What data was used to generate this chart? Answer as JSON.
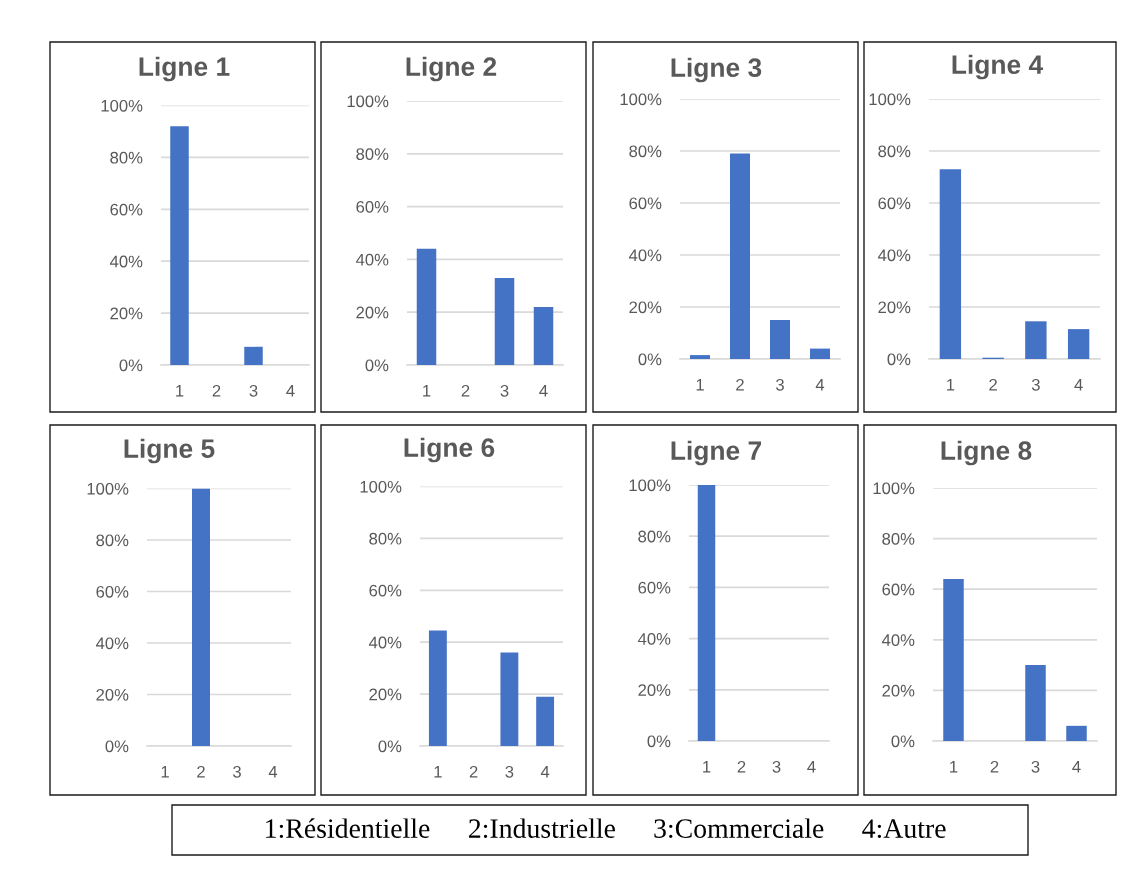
{
  "chart_data": [
    {
      "type": "bar",
      "title": "Ligne 1",
      "categories": [
        "1",
        "2",
        "3",
        "4"
      ],
      "values": [
        92,
        0,
        7,
        0
      ],
      "color": "#4472c4",
      "ylim": [
        0,
        100
      ],
      "yticks": [
        {
          "value": 0,
          "label": "0%"
        },
        {
          "value": 20,
          "label": "20%"
        },
        {
          "value": 40,
          "label": "40%"
        },
        {
          "value": 60,
          "label": "60%"
        },
        {
          "value": 80,
          "label": "80%"
        },
        {
          "value": 100,
          "label": "100%"
        }
      ],
      "grid": "y"
    },
    {
      "type": "bar",
      "title": "Ligne 2",
      "categories": [
        "1",
        "2",
        "3",
        "4"
      ],
      "values": [
        44,
        0,
        33,
        22
      ],
      "color": "#4472c4",
      "ylim": [
        0,
        100
      ],
      "yticks": [
        {
          "value": 0,
          "label": "0%"
        },
        {
          "value": 20,
          "label": "20%"
        },
        {
          "value": 40,
          "label": "40%"
        },
        {
          "value": 60,
          "label": "60%"
        },
        {
          "value": 80,
          "label": "80%"
        },
        {
          "value": 100,
          "label": "100%"
        }
      ],
      "grid": "y"
    },
    {
      "type": "bar",
      "title": "Ligne 3",
      "categories": [
        "1",
        "2",
        "3",
        "4"
      ],
      "values": [
        1.5,
        79,
        15,
        4
      ],
      "color": "#4472c4",
      "ylim": [
        0,
        100
      ],
      "yticks": [
        {
          "value": 0,
          "label": "0%"
        },
        {
          "value": 20,
          "label": "20%"
        },
        {
          "value": 40,
          "label": "40%"
        },
        {
          "value": 60,
          "label": "60%"
        },
        {
          "value": 80,
          "label": "80%"
        },
        {
          "value": 100,
          "label": "100%"
        }
      ],
      "grid": "y"
    },
    {
      "type": "bar",
      "title": "Ligne 4",
      "categories": [
        "1",
        "2",
        "3",
        "4"
      ],
      "values": [
        73,
        0.5,
        14.5,
        11.5
      ],
      "color": "#4472c4",
      "ylim": [
        0,
        100
      ],
      "yticks": [
        {
          "value": 0,
          "label": "0%"
        },
        {
          "value": 20,
          "label": "20%"
        },
        {
          "value": 40,
          "label": "40%"
        },
        {
          "value": 60,
          "label": "60%"
        },
        {
          "value": 80,
          "label": "80%"
        },
        {
          "value": 100,
          "label": "100%"
        }
      ],
      "grid": "y"
    },
    {
      "type": "bar",
      "title": "Ligne 5",
      "categories": [
        "1",
        "2",
        "3",
        "4"
      ],
      "values": [
        0,
        100,
        0,
        0
      ],
      "color": "#4472c4",
      "ylim": [
        0,
        100
      ],
      "yticks": [
        {
          "value": 0,
          "label": "0%"
        },
        {
          "value": 20,
          "label": "20%"
        },
        {
          "value": 40,
          "label": "40%"
        },
        {
          "value": 60,
          "label": "60%"
        },
        {
          "value": 80,
          "label": "80%"
        },
        {
          "value": 100,
          "label": "100%"
        }
      ],
      "grid": "y"
    },
    {
      "type": "bar",
      "title": "Ligne 6",
      "categories": [
        "1",
        "2",
        "3",
        "4"
      ],
      "values": [
        44.5,
        0,
        36,
        19
      ],
      "color": "#4472c4",
      "ylim": [
        0,
        100
      ],
      "yticks": [
        {
          "value": 0,
          "label": "0%"
        },
        {
          "value": 20,
          "label": "20%"
        },
        {
          "value": 40,
          "label": "40%"
        },
        {
          "value": 60,
          "label": "60%"
        },
        {
          "value": 80,
          "label": "80%"
        },
        {
          "value": 100,
          "label": "100%"
        }
      ],
      "grid": "y"
    },
    {
      "type": "bar",
      "title": "Ligne 7",
      "categories": [
        "1",
        "2",
        "3",
        "4"
      ],
      "values": [
        100,
        0,
        0,
        0
      ],
      "color": "#4472c4",
      "ylim": [
        0,
        100
      ],
      "yticks": [
        {
          "value": 0,
          "label": "0%"
        },
        {
          "value": 20,
          "label": "20%"
        },
        {
          "value": 40,
          "label": "40%"
        },
        {
          "value": 60,
          "label": "60%"
        },
        {
          "value": 80,
          "label": "80%"
        },
        {
          "value": 100,
          "label": "100%"
        }
      ],
      "grid": "y"
    },
    {
      "type": "bar",
      "title": "Ligne 8",
      "categories": [
        "1",
        "2",
        "3",
        "4"
      ],
      "values": [
        64,
        0,
        30,
        6
      ],
      "color": "#4472c4",
      "ylim": [
        0,
        100
      ],
      "yticks": [
        {
          "value": 0,
          "label": "0%"
        },
        {
          "value": 20,
          "label": "20%"
        },
        {
          "value": 40,
          "label": "40%"
        },
        {
          "value": 60,
          "label": "60%"
        },
        {
          "value": 80,
          "label": "80%"
        },
        {
          "value": 100,
          "label": "100%"
        }
      ],
      "grid": "y"
    },
    {
      "type": "other",
      "annotations": [
        "1:Résidentielle",
        "2:Industrielle",
        "3:Commerciale",
        "4:Autre"
      ]
    }
  ]
}
